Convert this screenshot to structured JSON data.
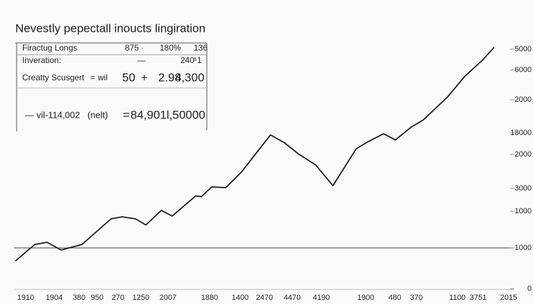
{
  "title": "Nevestly pepectall inoucts lingiration",
  "table": {
    "rows": [
      [
        "Firactug Longs",
        "875",
        "·",
        "180%",
        "·",
        "136"
      ],
      [
        "Inveration:",
        "—",
        "240",
        "⁵1"
      ],
      [
        "Creatty Scusgert",
        "=",
        "wil",
        "50",
        "+",
        "2.98",
        "4,300"
      ],
      [
        "— vil-114,002",
        "(nelt)",
        "=",
        "84,901l,50000"
      ]
    ]
  },
  "chart_data": {
    "type": "line",
    "color": "#1a1a1a",
    "xlim": [
      0,
      100
    ],
    "ylim": [
      0,
      100
    ],
    "x": [
      0.3,
      4.2,
      6.7,
      9.5,
      13.7,
      19.6,
      21.8,
      24.5,
      26.6,
      29.7,
      31.9,
      36.6,
      37.8,
      39.9,
      42.7,
      45.9,
      51.7,
      54.5,
      57.3,
      60.8,
      64.3,
      69.0,
      71.3,
      74.5,
      76.9,
      80.0,
      82.5,
      87.4,
      90.9,
      94.4,
      96.8
    ],
    "values": [
      11.2,
      17.9,
      18.8,
      15.7,
      17.9,
      28.3,
      29.1,
      28.3,
      25.8,
      31.7,
      29.4,
      37.5,
      37.3,
      41.2,
      40.9,
      47.3,
      62.2,
      59.1,
      54.6,
      50.1,
      41.7,
      56.6,
      59.4,
      62.7,
      60.2,
      65.3,
      68.3,
      77.6,
      86.0,
      92.4,
      97.7
    ],
    "x_labels": [
      "1910",
      "1904",
      "380",
      "950",
      "270",
      "1250",
      "2007",
      "1880",
      "1400",
      "2470",
      "4470",
      "4190",
      "1900",
      "480",
      "370",
      "1100",
      "3751",
      "2015"
    ],
    "y_labels": [
      "5000",
      "6000",
      "2000",
      "18000",
      "2000",
      "3000",
      "1000",
      "1000",
      "0"
    ]
  }
}
